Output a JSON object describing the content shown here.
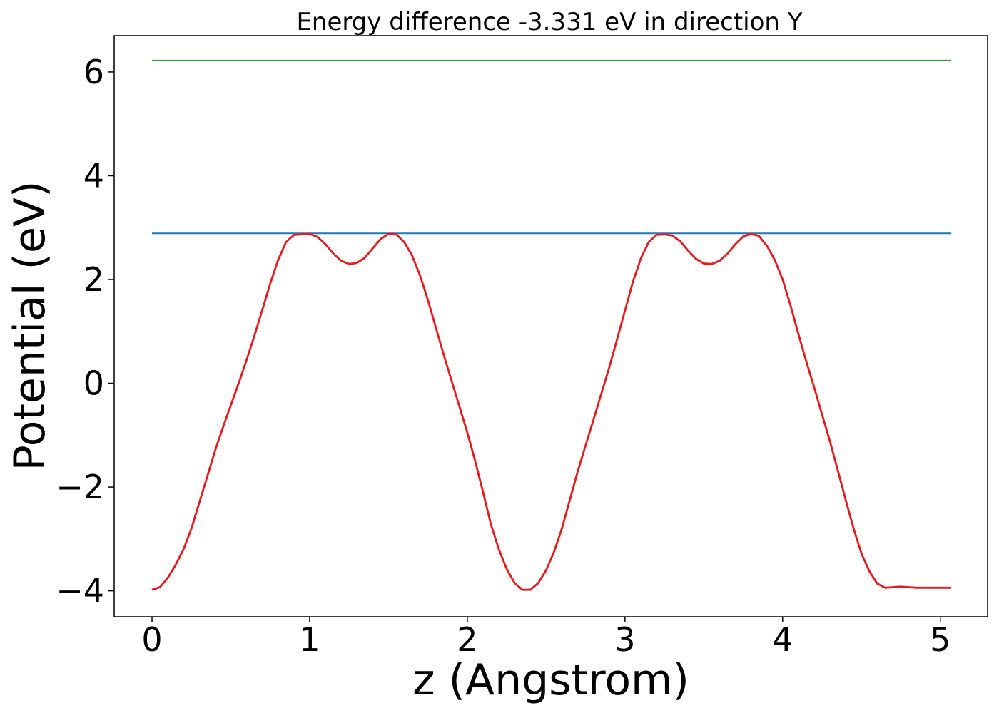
{
  "chart_data": {
    "type": "line",
    "title": "Energy difference -3.331 eV in direction Y",
    "xlabel": "z (Angstrom)",
    "ylabel": "Potential (eV)",
    "xlim": [
      -0.24,
      5.3
    ],
    "ylim": [
      -4.5,
      6.7
    ],
    "xticks": [
      0,
      1,
      2,
      3,
      4,
      5
    ],
    "xtick_labels": [
      "0",
      "1",
      "2",
      "3",
      "4",
      "5"
    ],
    "yticks": [
      -4,
      -2,
      0,
      2,
      4,
      6
    ],
    "ytick_labels": [
      "−4",
      "−2",
      "0",
      "2",
      "4",
      "6"
    ],
    "grid": false,
    "series": [
      {
        "color": "#2ca02c",
        "x": [
          0,
          5.07
        ],
        "y": [
          6.22,
          6.22
        ]
      },
      {
        "color": "#1f77b4",
        "x": [
          0,
          5.07
        ],
        "y": [
          2.89,
          2.89
        ]
      },
      {
        "color": "#e41a1c",
        "x": [
          0,
          0.05,
          0.1,
          0.15,
          0.2,
          0.25,
          0.3,
          0.35,
          0.4,
          0.45,
          0.5,
          0.55,
          0.6,
          0.65,
          0.7,
          0.75,
          0.8,
          0.85,
          0.9,
          0.95,
          1.0,
          1.05,
          1.1,
          1.15,
          1.2,
          1.25,
          1.3,
          1.35,
          1.4,
          1.45,
          1.5,
          1.55,
          1.6,
          1.65,
          1.7,
          1.75,
          1.8,
          1.85,
          1.9,
          1.95,
          2.0,
          2.05,
          2.1,
          2.15,
          2.2,
          2.25,
          2.3,
          2.35,
          2.4,
          2.45,
          2.5,
          2.55,
          2.6,
          2.65,
          2.7,
          2.75,
          2.8,
          2.85,
          2.9,
          2.95,
          3.0,
          3.05,
          3.1,
          3.15,
          3.2,
          3.25,
          3.3,
          3.35,
          3.4,
          3.45,
          3.5,
          3.55,
          3.6,
          3.65,
          3.7,
          3.75,
          3.8,
          3.85,
          3.9,
          3.95,
          4.0,
          4.05,
          4.1,
          4.15,
          4.2,
          4.25,
          4.3,
          4.35,
          4.4,
          4.45,
          4.5,
          4.55,
          4.6,
          4.65,
          4.7,
          4.75,
          4.8,
          4.85,
          4.9,
          4.95,
          5.0,
          5.05,
          5.07
        ],
        "y": [
          -3.98,
          -3.93,
          -3.75,
          -3.5,
          -3.2,
          -2.8,
          -2.3,
          -1.8,
          -1.3,
          -0.85,
          -0.42,
          0.0,
          0.45,
          0.92,
          1.42,
          1.92,
          2.38,
          2.72,
          2.86,
          2.87,
          2.88,
          2.82,
          2.68,
          2.5,
          2.36,
          2.3,
          2.32,
          2.42,
          2.6,
          2.78,
          2.88,
          2.87,
          2.72,
          2.46,
          2.08,
          1.6,
          1.08,
          0.55,
          0.05,
          -0.45,
          -0.95,
          -1.5,
          -2.1,
          -2.72,
          -3.2,
          -3.58,
          -3.85,
          -3.98,
          -3.98,
          -3.85,
          -3.6,
          -3.25,
          -2.8,
          -2.25,
          -1.7,
          -1.2,
          -0.7,
          -0.2,
          0.3,
          0.85,
          1.4,
          1.95,
          2.4,
          2.72,
          2.86,
          2.87,
          2.85,
          2.74,
          2.56,
          2.4,
          2.31,
          2.3,
          2.36,
          2.5,
          2.68,
          2.83,
          2.88,
          2.84,
          2.65,
          2.38,
          2.0,
          1.5,
          0.95,
          0.42,
          -0.08,
          -0.6,
          -1.12,
          -1.68,
          -2.25,
          -2.8,
          -3.28,
          -3.62,
          -3.86,
          -3.94,
          -3.93,
          -3.92,
          -3.93,
          -3.94,
          -3.94,
          -3.94,
          -3.94,
          -3.94,
          -3.94
        ]
      }
    ]
  }
}
